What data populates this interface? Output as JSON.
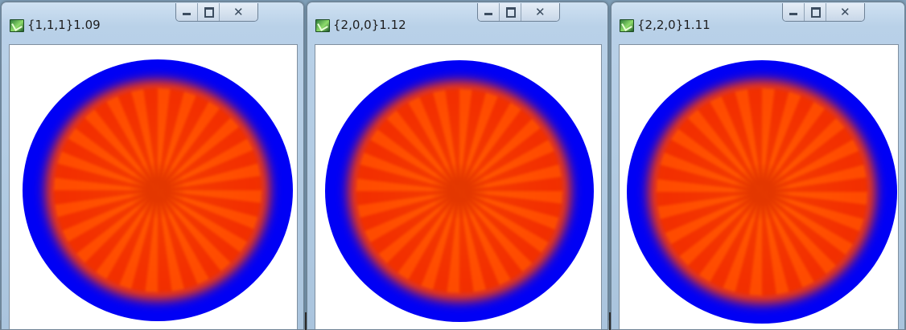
{
  "windows": [
    {
      "title": "{1,1,1}1.09",
      "icon": "pole-figure-app-icon",
      "buttons": {
        "minimize": "minimize",
        "maximize": "maximize",
        "close": "close"
      }
    },
    {
      "title": "{2,0,0}1.12",
      "icon": "pole-figure-app-icon",
      "buttons": {
        "minimize": "minimize",
        "maximize": "maximize",
        "close": "close"
      }
    },
    {
      "title": "{2,2,0}1.11",
      "icon": "pole-figure-app-icon",
      "buttons": {
        "minimize": "minimize",
        "maximize": "maximize",
        "close": "close"
      }
    }
  ],
  "colors": {
    "ring": "#0000f5",
    "intensity": "#ff3a00",
    "client_bg": "#ffffff"
  }
}
